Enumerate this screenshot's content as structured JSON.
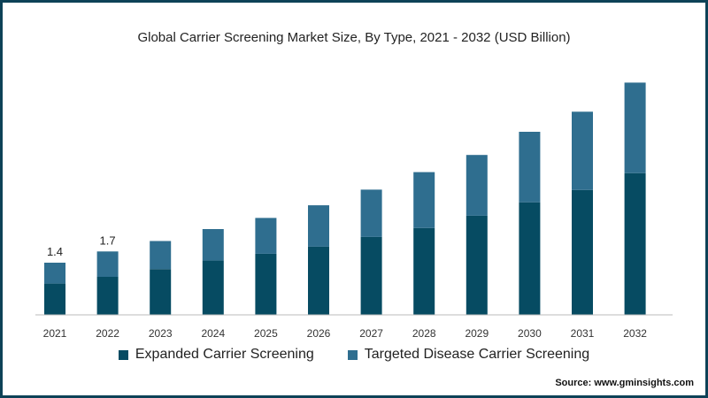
{
  "chart_data": {
    "type": "bar",
    "stacked": true,
    "title": "Global Carrier Screening Market Size, By Type, 2021 - 2032 (USD Billion)",
    "categories": [
      "2021",
      "2022",
      "2023",
      "2024",
      "2025",
      "2026",
      "2027",
      "2028",
      "2029",
      "2030",
      "2031",
      "2032"
    ],
    "series": [
      {
        "name": "Expanded Carrier Screening",
        "color": "#064b62",
        "values": [
          0.84,
          1.02,
          1.23,
          1.46,
          1.64,
          1.83,
          2.09,
          2.33,
          2.66,
          3.02,
          3.35,
          3.8
        ]
      },
      {
        "name": "Targeted Disease Carrier Screening",
        "color": "#2f6e8f",
        "values": [
          0.56,
          0.68,
          0.75,
          0.84,
          0.96,
          1.11,
          1.27,
          1.5,
          1.63,
          1.89,
          2.1,
          2.43
        ]
      }
    ],
    "data_labels": [
      "1.4",
      "1.7",
      "",
      "",
      "",
      "",
      "",
      "",
      "",
      "",
      "",
      ""
    ],
    "ylim": [
      0,
      6.5
    ],
    "grid": false,
    "legend_position": "bottom"
  },
  "source_text": "Source: www.gminsights.com"
}
